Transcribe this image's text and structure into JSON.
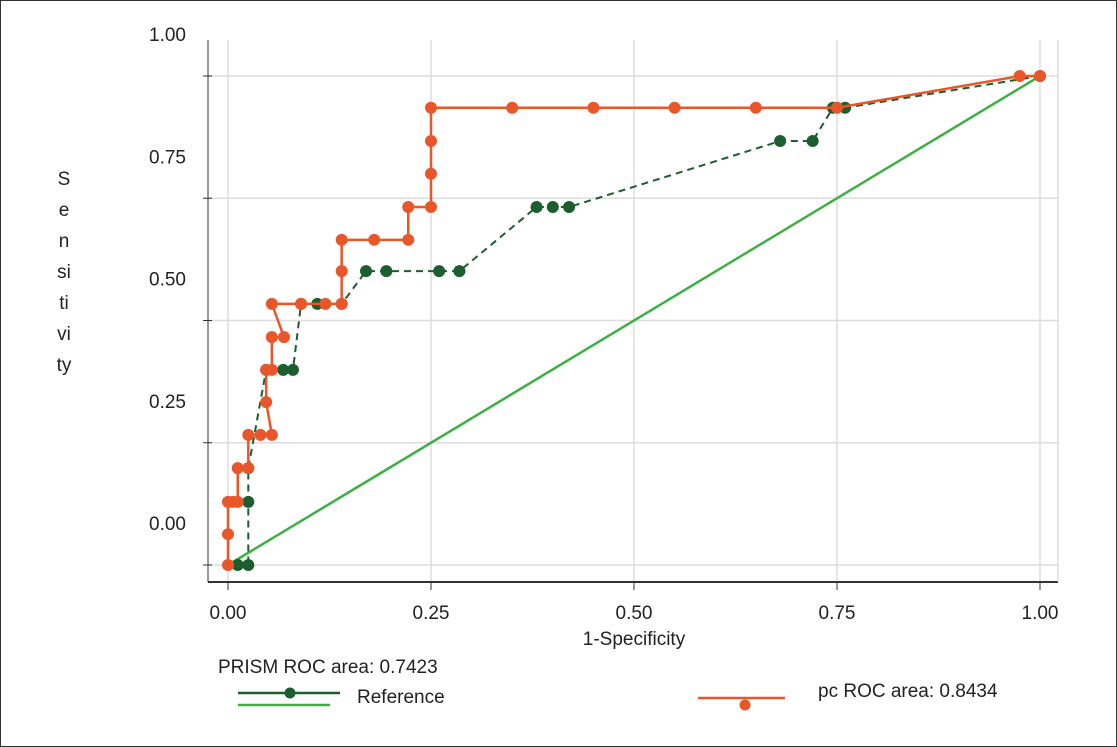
{
  "chart_data": {
    "type": "line",
    "xlabel": "1-Specificity",
    "ylabel_lines": [
      "S",
      "e",
      "n",
      "si",
      "ti",
      "vi",
      "ty"
    ],
    "xlim": [
      0,
      1
    ],
    "ylim": [
      0,
      1
    ],
    "xticks": [
      {
        "value": 0,
        "label": "0.00"
      },
      {
        "value": 0.25,
        "label": "0.25"
      },
      {
        "value": 0.5,
        "label": "0.50"
      },
      {
        "value": 0.75,
        "label": "0.75"
      },
      {
        "value": 1,
        "label": "1.00"
      }
    ],
    "yticks": [
      {
        "value": 0,
        "label": "0.00"
      },
      {
        "value": 0.25,
        "label": "0.25"
      },
      {
        "value": 0.5,
        "label": "0.50"
      },
      {
        "value": 0.75,
        "label": "0.75"
      },
      {
        "value": 1,
        "label": "1.00"
      }
    ],
    "grid": true,
    "series": [
      {
        "name": "PRISM ROC area: 0.7423",
        "color": "#1d5e2f",
        "line_style": "dashed",
        "markers": true,
        "x": [
          0.012,
          0.025,
          0.025,
          0.025,
          0.047,
          0.068,
          0.08,
          0.09,
          0.11,
          0.14,
          0.17,
          0.195,
          0.26,
          0.285,
          0.38,
          0.4,
          0.42,
          0.68,
          0.72,
          0.745,
          0.76,
          1
        ],
        "y": [
          0,
          0,
          0.129,
          0.198,
          0.399,
          0.399,
          0.399,
          0.534,
          0.534,
          0.534,
          0.601,
          0.601,
          0.601,
          0.601,
          0.732,
          0.732,
          0.732,
          0.867,
          0.867,
          0.935,
          0.935,
          1
        ]
      },
      {
        "name": "Reference",
        "color": "#3cb043",
        "line_style": "solid",
        "markers": false,
        "x": [
          0,
          1
        ],
        "y": [
          0,
          1
        ]
      },
      {
        "name": "pc ROC area: 0.8434",
        "color": "#e8562a",
        "line_style": "solid",
        "markers": true,
        "x": [
          0,
          0,
          0,
          0.006,
          0.012,
          0.012,
          0.025,
          0.025,
          0.04,
          0.054,
          0.047,
          0.047,
          0.054,
          0.054,
          0.069,
          0.054,
          0.09,
          0.12,
          0.14,
          0.14,
          0.14,
          0.18,
          0.222,
          0.222,
          0.25,
          0.25,
          0.25,
          0.25,
          0.35,
          0.45,
          0.55,
          0.65,
          0.75,
          0.975,
          1
        ],
        "y": [
          0,
          0.063,
          0.129,
          0.129,
          0.129,
          0.198,
          0.198,
          0.266,
          0.266,
          0.266,
          0.333,
          0.399,
          0.399,
          0.466,
          0.466,
          0.534,
          0.534,
          0.534,
          0.534,
          0.601,
          0.665,
          0.665,
          0.665,
          0.732,
          0.732,
          0.8,
          0.867,
          0.935,
          0.935,
          0.935,
          0.935,
          0.935,
          0.935,
          1,
          1
        ]
      }
    ]
  }
}
